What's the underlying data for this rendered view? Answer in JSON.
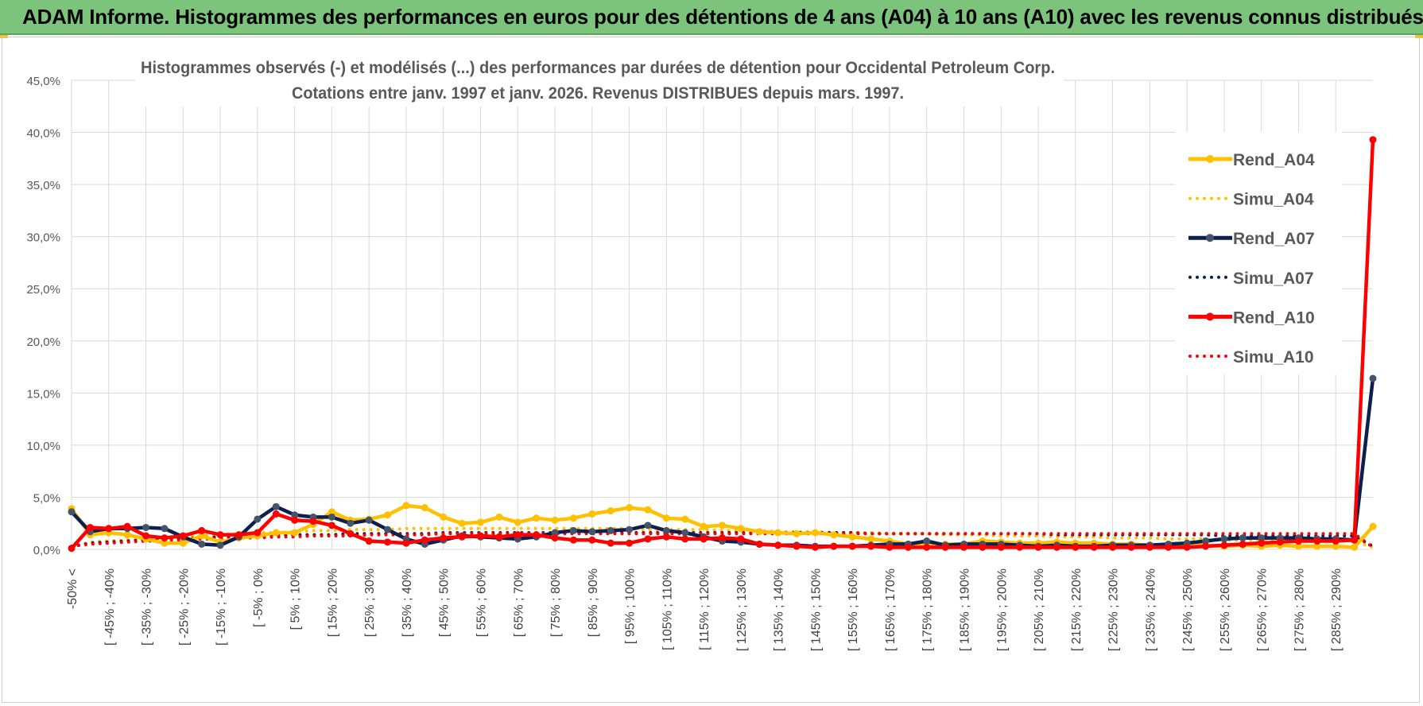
{
  "banner": {
    "title": "ADAM Informe. Histogrammes des performances en euros pour des détentions de 4 ans (A04) à 10 ans (A10) avec les revenus connus distribués"
  },
  "chart_data": {
    "type": "line",
    "title_line1": "Histogrammes observés (-) et modélisés (...) des performances par durées de détention pour Occidental Petroleum Corp.",
    "title_line2": "Cotations entre janv. 1997 et janv. 2026. Revenus DISTRIBUES depuis mars. 1997.",
    "ylim": [
      0,
      45
    ],
    "y_ticks": [
      "0,0%",
      "5,0%",
      "10,0%",
      "15,0%",
      "20,0%",
      "25,0%",
      "30,0%",
      "35,0%",
      "40,0%",
      "45,0%"
    ],
    "x_tick_labels": [
      "-50% <",
      "[ -45% ; -40%",
      "[ -35% ; -30%",
      "[ -25% ; -20%",
      "[ -15% ; -10%",
      "[ -5% ; 0%",
      "[ 5% ; 10%",
      "[ 15% ; 20%",
      "[ 25% ; 30%",
      "[ 35% ; 40%",
      "[ 45% ; 50%",
      "[ 55% ; 60%",
      "[ 65% ; 70%",
      "[ 75% ; 80%",
      "[ 85% ; 90%",
      "[ 95% ; 100%",
      "[ 105% ; 110%",
      "[ 115% ; 120%",
      "[ 125% ; 130%",
      "[ 135% ; 140%",
      "[ 145% ; 150%",
      "[ 155% ; 160%",
      "[ 165% ; 170%",
      "[ 175% ; 180%",
      "[ 185% ; 190%",
      "[ 195% ; 200%",
      "[ 205% ; 210%",
      "[ 215% ; 220%",
      "[ 225% ; 230%",
      "[ 235% ; 240%",
      "[ 245% ; 250%",
      "[ 255% ; 260%",
      "[ 265% ; 270%",
      "[ 275% ; 280%",
      "[ 285% ; 290%"
    ],
    "n_bins": 71,
    "series": [
      {
        "name": "Rend_A04",
        "color": "#ffc000",
        "style": "solid",
        "values": [
          3.9,
          1.4,
          1.6,
          1.4,
          1.0,
          0.6,
          0.6,
          1.3,
          0.7,
          1.1,
          1.3,
          1.6,
          1.6,
          2.4,
          3.6,
          2.8,
          2.9,
          3.3,
          4.2,
          4.0,
          3.1,
          2.5,
          2.6,
          3.1,
          2.6,
          3.0,
          2.8,
          3.0,
          3.4,
          3.7,
          4.0,
          3.8,
          3.0,
          2.9,
          2.2,
          2.3,
          2.0,
          1.7,
          1.6,
          1.5,
          1.6,
          1.4,
          1.2,
          1.0,
          0.8,
          0.5,
          0.5,
          0.5,
          0.5,
          0.8,
          0.7,
          0.6,
          0.6,
          0.7,
          0.6,
          0.6,
          0.5,
          0.5,
          0.4,
          0.4,
          0.4,
          0.4,
          0.3,
          0.4,
          0.3,
          0.4,
          0.3,
          0.3,
          0.3,
          0.2,
          2.2
        ]
      },
      {
        "name": "Simu_A04",
        "color": "#ffc000",
        "style": "dotted",
        "values": [
          0.2,
          0.7,
          0.8,
          0.9,
          1.0,
          1.1,
          1.2,
          1.3,
          1.4,
          1.5,
          1.6,
          1.6,
          1.7,
          1.8,
          1.8,
          1.9,
          1.9,
          1.9,
          2.0,
          2.0,
          2.0,
          2.0,
          2.0,
          2.0,
          2.0,
          2.0,
          2.0,
          2.0,
          2.0,
          2.0,
          2.0,
          1.9,
          1.9,
          1.9,
          1.9,
          1.8,
          1.8,
          1.8,
          1.7,
          1.7,
          1.7,
          1.6,
          1.6,
          1.6,
          1.5,
          1.5,
          1.5,
          1.4,
          1.4,
          1.4,
          1.3,
          1.3,
          1.3,
          1.2,
          1.2,
          1.2,
          1.1,
          1.1,
          1.1,
          1.0,
          1.0,
          1.0,
          0.9,
          0.9,
          0.9,
          0.9,
          0.8,
          0.8,
          0.8,
          0.8,
          0.2
        ]
      },
      {
        "name": "Rend_A07",
        "color": "#0d1f4f",
        "style": "solid",
        "values": [
          3.6,
          1.7,
          2.0,
          2.0,
          2.1,
          2.0,
          1.2,
          0.5,
          0.4,
          1.2,
          2.9,
          4.1,
          3.3,
          3.1,
          3.1,
          2.5,
          2.8,
          1.9,
          1.0,
          0.5,
          0.9,
          1.3,
          1.2,
          1.1,
          1.0,
          1.2,
          1.6,
          1.8,
          1.7,
          1.8,
          1.9,
          2.3,
          1.8,
          1.6,
          1.2,
          0.8,
          0.7,
          0.5,
          0.4,
          0.4,
          0.3,
          0.3,
          0.3,
          0.4,
          0.5,
          0.5,
          0.8,
          0.4,
          0.5,
          0.5,
          0.5,
          0.4,
          0.3,
          0.4,
          0.3,
          0.3,
          0.4,
          0.4,
          0.4,
          0.5,
          0.6,
          0.8,
          1.0,
          1.1,
          1.1,
          1.1,
          1.1,
          1.0,
          1.0,
          0.9,
          16.4
        ]
      },
      {
        "name": "Simu_A07",
        "color": "#0d1f4f",
        "style": "dotted",
        "values": [
          0.3,
          0.6,
          0.7,
          0.8,
          0.9,
          1.0,
          1.0,
          1.1,
          1.2,
          1.2,
          1.3,
          1.3,
          1.4,
          1.4,
          1.4,
          1.5,
          1.5,
          1.5,
          1.5,
          1.5,
          1.6,
          1.6,
          1.6,
          1.6,
          1.6,
          1.6,
          1.6,
          1.6,
          1.6,
          1.6,
          1.6,
          1.6,
          1.6,
          1.6,
          1.6,
          1.6,
          1.6,
          1.6,
          1.6,
          1.6,
          1.6,
          1.6,
          1.6,
          1.5,
          1.5,
          1.5,
          1.5,
          1.5,
          1.5,
          1.5,
          1.5,
          1.5,
          1.5,
          1.4,
          1.4,
          1.4,
          1.4,
          1.4,
          1.4,
          1.4,
          1.4,
          1.4,
          1.3,
          1.3,
          1.3,
          1.3,
          1.3,
          1.3,
          1.3,
          1.3,
          0.3
        ]
      },
      {
        "name": "Rend_A10",
        "color": "#ff0000",
        "style": "solid",
        "values": [
          0.1,
          2.1,
          2.0,
          2.2,
          1.3,
          1.1,
          1.3,
          1.8,
          1.4,
          1.4,
          1.6,
          3.4,
          2.8,
          2.7,
          2.3,
          1.5,
          0.8,
          0.7,
          0.6,
          0.9,
          1.1,
          1.2,
          1.3,
          1.2,
          1.4,
          1.4,
          1.1,
          0.9,
          0.9,
          0.6,
          0.6,
          1.0,
          1.2,
          1.0,
          1.0,
          1.1,
          1.0,
          0.5,
          0.4,
          0.3,
          0.2,
          0.3,
          0.3,
          0.3,
          0.2,
          0.2,
          0.2,
          0.2,
          0.2,
          0.2,
          0.2,
          0.2,
          0.2,
          0.2,
          0.2,
          0.2,
          0.2,
          0.2,
          0.2,
          0.2,
          0.2,
          0.3,
          0.4,
          0.5,
          0.6,
          0.7,
          0.8,
          0.8,
          0.8,
          0.9,
          39.3
        ]
      },
      {
        "name": "Simu_A10",
        "color": "#ff0000",
        "style": "dotted",
        "values": [
          0.3,
          0.5,
          0.6,
          0.7,
          0.8,
          0.8,
          0.9,
          1.0,
          1.0,
          1.1,
          1.1,
          1.2,
          1.2,
          1.3,
          1.3,
          1.3,
          1.4,
          1.4,
          1.4,
          1.4,
          1.5,
          1.5,
          1.5,
          1.5,
          1.5,
          1.5,
          1.5,
          1.5,
          1.5,
          1.5,
          1.5,
          1.5,
          1.5,
          1.5,
          1.5,
          1.5,
          1.5,
          1.5,
          1.5,
          1.5,
          1.5,
          1.5,
          1.5,
          1.5,
          1.5,
          1.5,
          1.5,
          1.5,
          1.5,
          1.5,
          1.5,
          1.5,
          1.5,
          1.5,
          1.5,
          1.5,
          1.5,
          1.5,
          1.5,
          1.5,
          1.5,
          1.5,
          1.5,
          1.5,
          1.5,
          1.5,
          1.5,
          1.5,
          1.5,
          1.5,
          0.2
        ]
      }
    ],
    "legend_position": "right"
  }
}
